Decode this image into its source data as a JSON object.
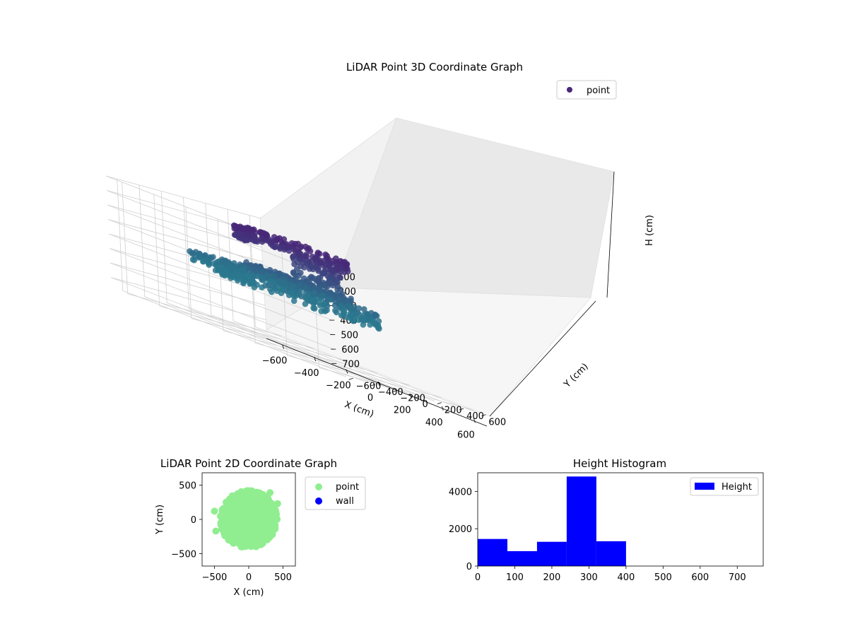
{
  "chart_data": [
    {
      "type": "scatter",
      "projection": "3d",
      "title": "LiDAR Point 3D Coordinate Graph",
      "xlabel": "X (cm)",
      "ylabel": "Y (cm)",
      "zlabel": "H (cm)",
      "xlim": [
        -700,
        700
      ],
      "ylim": [
        -700,
        700
      ],
      "zlim": [
        0,
        770
      ],
      "z_inverted": true,
      "x_ticks": [
        -600,
        -400,
        -200,
        0,
        200,
        400,
        600
      ],
      "y_ticks": [
        -600,
        -400,
        -200,
        0,
        200,
        400,
        600
      ],
      "z_ticks": [
        0,
        100,
        200,
        300,
        400,
        500,
        600,
        700
      ],
      "grid": true,
      "legend": {
        "entries": [
          "point"
        ],
        "placement": "upper-right"
      },
      "colormap": {
        "name": "viridis-partial",
        "low": "#482878",
        "high": "#2a788e"
      },
      "series": [
        {
          "name": "point",
          "point_groups": [
            {
              "shape": "ring",
              "r": [
                300,
                430
              ],
              "theta": [
                0,
                360
              ],
              "h": [
                330,
                410
              ],
              "count": 260,
              "seed": 11
            },
            {
              "shape": "disc",
              "r": [
                0,
                280
              ],
              "theta": [
                0,
                360
              ],
              "h": [
                270,
                330
              ],
              "count": 240,
              "seed": 23
            },
            {
              "shape": "arc",
              "r": [
                240,
                320
              ],
              "theta": [
                60,
                250
              ],
              "h": [
                40,
                120
              ],
              "count": 230,
              "seed": 37
            },
            {
              "shape": "arc",
              "r": [
                160,
                250
              ],
              "theta": [
                50,
                130
              ],
              "h": [
                110,
                260
              ],
              "count": 90,
              "seed": 41
            },
            {
              "shape": "arc",
              "r": [
                420,
                560
              ],
              "theta": [
                155,
                215
              ],
              "h": [
                330,
                400
              ],
              "count": 60,
              "seed": 53
            },
            {
              "shape": "points",
              "points": [
                [
                  560,
                  -100,
                  300
                ],
                [
                  620,
                  -160,
                  380
                ]
              ]
            }
          ]
        }
      ]
    },
    {
      "type": "scatter",
      "title": "LiDAR Point 2D Coordinate Graph",
      "xlabel": "X (cm)",
      "ylabel": "Y (cm)",
      "xlim": [
        -680,
        680
      ],
      "ylim": [
        -680,
        680
      ],
      "x_ticks": [
        -500,
        0,
        500
      ],
      "y_ticks": [
        -500,
        0,
        500
      ],
      "grid": false,
      "legend": {
        "entries": [
          "point",
          "wall"
        ],
        "placement": "outside-right"
      },
      "series": [
        {
          "name": "point",
          "color": "#90ee90",
          "point_groups": [
            {
              "shape": "disc",
              "r": [
                0,
                420
              ],
              "theta": [
                0,
                360
              ],
              "count": 700,
              "seed": 7
            },
            {
              "shape": "points",
              "points": [
                [
                  310,
                  390
                ],
                [
                  420,
                  230
                ],
                [
                  -480,
                  -170
                ],
                [
                  -500,
                  120
                ],
                [
                  380,
                  -130
                ]
              ]
            }
          ]
        },
        {
          "name": "wall",
          "color": "#0000ff",
          "points": []
        }
      ]
    },
    {
      "type": "bar",
      "title": "Height Histogram",
      "xlabel": "",
      "ylabel": "",
      "xlim": [
        0,
        770
      ],
      "ylim": [
        0,
        5000
      ],
      "x_ticks": [
        0,
        100,
        200,
        300,
        400,
        500,
        600,
        700
      ],
      "y_ticks": [
        0,
        2000,
        4000
      ],
      "grid": false,
      "legend": {
        "entries": [
          "Height"
        ],
        "placement": "upper-right"
      },
      "bin_edges": [
        0,
        80,
        160,
        240,
        320,
        400,
        480,
        560,
        640,
        720,
        800
      ],
      "series": [
        {
          "name": "Height",
          "color": "#0000ff",
          "values": [
            1450,
            800,
            1300,
            4800,
            1330,
            0,
            0,
            0,
            0,
            0
          ]
        }
      ]
    }
  ]
}
